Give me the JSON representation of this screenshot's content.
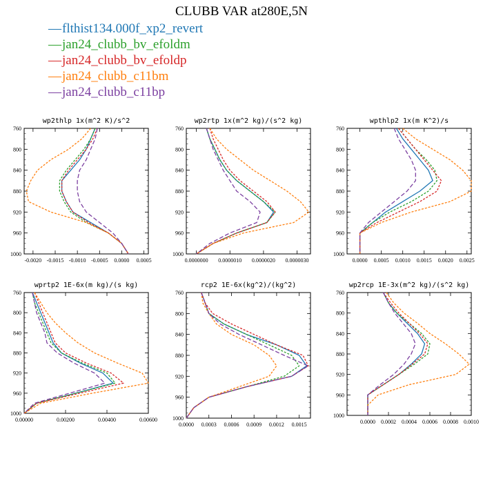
{
  "title": "CLUBB VAR at280E,5N",
  "legend": [
    {
      "label": "flthist134.000f_xp2_revert",
      "color": "#1f77b4"
    },
    {
      "label": "jan24_clubb_bv_efoldm",
      "color": "#2ca02c"
    },
    {
      "label": "jan24_clubb_bv_efoldp",
      "color": "#d62728"
    },
    {
      "label": "jan24_clubb_c11bm",
      "color": "#ff7f0e"
    },
    {
      "label": "jan24_clubb_c11bp",
      "color": "#7b3fa0"
    }
  ],
  "chart_data": [
    {
      "type": "line",
      "title": "wp2thlp  1x(m^2 K)/s^2",
      "xlim": [
        -0.0022,
        0.0006
      ],
      "ylim": [
        760,
        1000
      ],
      "xticks": [
        -0.002,
        -0.0015,
        -0.001,
        -0.0005,
        0.0,
        0.0005
      ],
      "xticklabels": [
        "-0.0020",
        "-0.0015",
        "-0.0010",
        "-0.0005",
        "0.0000",
        "0.0005"
      ],
      "yticks": [
        760,
        800,
        840,
        880,
        920,
        960,
        1000
      ],
      "y": [
        760,
        780,
        800,
        820,
        840,
        860,
        880,
        900,
        920,
        940,
        960,
        980,
        1000
      ],
      "series": [
        {
          "x": [
            -0.0006,
            -0.0007,
            -0.0008,
            -0.00095,
            -0.00115,
            -0.00135,
            -0.00135,
            -0.00125,
            -0.0011,
            -0.0007,
            -0.0003,
            0.0,
            0.00015
          ]
        },
        {
          "x": [
            -0.0006,
            -0.0007,
            -0.00085,
            -0.00105,
            -0.00125,
            -0.0014,
            -0.0014,
            -0.0013,
            -0.00115,
            -0.0008,
            -0.0003,
            0.0,
            0.00015
          ]
        },
        {
          "x": [
            -0.00055,
            -0.00065,
            -0.0008,
            -0.001,
            -0.0012,
            -0.00135,
            -0.00135,
            -0.00125,
            -0.0011,
            -0.00075,
            -0.0003,
            0.0,
            0.00015
          ]
        },
        {
          "x": [
            -0.0007,
            -0.0009,
            -0.0012,
            -0.0016,
            -0.0019,
            -0.00205,
            -0.00215,
            -0.0021,
            -0.0016,
            -0.0008,
            -0.0003,
            0.0,
            0.00015
          ]
        },
        {
          "x": [
            -0.00055,
            -0.0006,
            -0.0007,
            -0.0008,
            -0.00095,
            -0.001,
            -0.001,
            -0.00095,
            -0.0008,
            -0.0005,
            -0.0002,
            0.0,
            0.00015
          ]
        }
      ]
    },
    {
      "type": "line",
      "title": "wp2rtp  1x(m^2 kg)/(s^2 kg)",
      "xlim": [
        -3e-07,
        3.4e-06
      ],
      "ylim": [
        760,
        1000
      ],
      "xticks": [
        0.0,
        1e-06,
        2e-06,
        3e-06
      ],
      "xticklabels": [
        "0.0000000",
        "0.0000010",
        "0.0000020",
        "0.0000030"
      ],
      "yticks": [
        760,
        800,
        840,
        880,
        920,
        960,
        1000
      ],
      "y": [
        760,
        780,
        800,
        820,
        840,
        860,
        880,
        900,
        920,
        940,
        960,
        980,
        1000
      ],
      "series": [
        {
          "x": [
            3e-07,
            4e-07,
            5.5e-07,
            7e-07,
            9e-07,
            1.2e-06,
            1.6e-06,
            2e-06,
            2.3e-06,
            2.1e-06,
            1.2e-06,
            5e-07,
            0.0
          ]
        },
        {
          "x": [
            3e-07,
            4e-07,
            5.5e-07,
            7e-07,
            9e-07,
            1.2e-06,
            1.6e-06,
            2e-06,
            2.35e-06,
            2.1e-06,
            1.2e-06,
            5e-07,
            0.0
          ]
        },
        {
          "x": [
            4e-07,
            5e-07,
            6.5e-07,
            8e-07,
            1e-06,
            1.3e-06,
            1.7e-06,
            2.1e-06,
            2.35e-06,
            2.1e-06,
            1.2e-06,
            5e-07,
            0.0
          ]
        },
        {
          "x": [
            4e-07,
            6e-07,
            9e-07,
            1.3e-06,
            1.7e-06,
            2.2e-06,
            2.7e-06,
            3.1e-06,
            3.35e-06,
            2.9e-06,
            1.4e-06,
            5e-07,
            0.0
          ]
        },
        {
          "x": [
            3e-07,
            4e-07,
            5e-07,
            6.5e-07,
            8e-07,
            1e-06,
            1.2e-06,
            1.6e-06,
            1.9e-06,
            1.8e-06,
            1e-06,
            4e-07,
            0.0
          ]
        }
      ]
    },
    {
      "type": "line",
      "title": "wpthlp2  1x(m K^2)/s",
      "xlim": [
        -0.0003,
        0.0026
      ],
      "ylim": [
        760,
        1000
      ],
      "xticks": [
        0.0,
        0.0005,
        0.001,
        0.0015,
        0.002,
        0.0025
      ],
      "xticklabels": [
        "0.0000",
        "0.0005",
        "0.0010",
        "0.0015",
        "0.0020",
        "0.0025"
      ],
      "yticks": [
        760,
        800,
        840,
        880,
        920,
        960,
        1000
      ],
      "y": [
        760,
        780,
        800,
        820,
        840,
        860,
        880,
        900,
        920,
        940,
        960,
        980,
        1000
      ],
      "series": [
        {
          "x": [
            0.00085,
            0.001,
            0.0012,
            0.0014,
            0.0016,
            0.0017,
            0.0014,
            0.001,
            0.0006,
            0.0003,
            0.0,
            0.0,
            0.0
          ]
        },
        {
          "x": [
            0.0009,
            0.0011,
            0.0013,
            0.00155,
            0.00175,
            0.0018,
            0.0016,
            0.0012,
            0.0007,
            0.0003,
            0.0,
            0.0,
            0.0
          ]
        },
        {
          "x": [
            0.0009,
            0.0011,
            0.0013,
            0.0015,
            0.0017,
            0.0019,
            0.0018,
            0.0014,
            0.0009,
            0.0004,
            0.0,
            0.0,
            0.0
          ]
        },
        {
          "x": [
            0.001,
            0.0013,
            0.0017,
            0.0021,
            0.0024,
            0.0026,
            0.0026,
            0.0021,
            0.0012,
            0.0005,
            0.0,
            0.0,
            0.0
          ]
        },
        {
          "x": [
            0.0008,
            0.0009,
            0.00105,
            0.0012,
            0.0013,
            0.0013,
            0.0011,
            0.0008,
            0.0005,
            0.0002,
            0.0,
            0.0,
            0.0
          ]
        }
      ]
    },
    {
      "type": "line",
      "title": "wprtp2  1E-6x(m kg)/(s kg)",
      "xlim": [
        0.0,
        0.006
      ],
      "ylim": [
        760,
        1000
      ],
      "xticks": [
        0.0,
        0.002,
        0.004,
        0.006
      ],
      "xticklabels": [
        "0.00000",
        "0.00200",
        "0.00400",
        "0.00600"
      ],
      "yticks": [
        760,
        800,
        840,
        880,
        920,
        960,
        1000
      ],
      "y": [
        760,
        780,
        800,
        820,
        840,
        860,
        880,
        900,
        920,
        940,
        960,
        980,
        1000
      ],
      "series": [
        {
          "x": [
            0.0004,
            0.0006,
            0.0008,
            0.001,
            0.0012,
            0.0014,
            0.0018,
            0.0027,
            0.0038,
            0.0043,
            0.0025,
            0.0006,
            0.0
          ]
        },
        {
          "x": [
            0.0004,
            0.0005,
            0.0007,
            0.0009,
            0.0011,
            0.0013,
            0.0018,
            0.0028,
            0.004,
            0.0044,
            0.0025,
            0.0006,
            0.0
          ]
        },
        {
          "x": [
            0.0005,
            0.0007,
            0.0009,
            0.0011,
            0.0013,
            0.0015,
            0.002,
            0.003,
            0.0042,
            0.0048,
            0.0027,
            0.0006,
            0.0
          ]
        },
        {
          "x": [
            0.0005,
            0.0008,
            0.0011,
            0.0015,
            0.002,
            0.0026,
            0.0034,
            0.0045,
            0.0057,
            0.006,
            0.0033,
            0.0008,
            0.0
          ]
        },
        {
          "x": [
            0.0004,
            0.0005,
            0.0006,
            0.0008,
            0.001,
            0.0011,
            0.0016,
            0.0024,
            0.0034,
            0.0039,
            0.0022,
            0.0005,
            0.0
          ]
        }
      ]
    },
    {
      "type": "line",
      "title": "rcp2  1E-6x(kg^2)/(kg^2)",
      "xlim": [
        0.0,
        0.00165
      ],
      "ylim": [
        760,
        1000
      ],
      "xticks": [
        0.0,
        0.0003,
        0.0006,
        0.0009,
        0.0012,
        0.0015
      ],
      "xticklabels": [
        "0.0000",
        "0.0003",
        "0.0006",
        "0.0009",
        "0.0012",
        "0.0015"
      ],
      "yticks": [
        760,
        800,
        840,
        880,
        920,
        960,
        1000
      ],
      "y": [
        760,
        780,
        800,
        820,
        840,
        860,
        880,
        900,
        920,
        940,
        960,
        980,
        1000
      ],
      "series": [
        {
          "x": [
            0.0002,
            0.00025,
            0.0003,
            0.0005,
            0.0008,
            0.0012,
            0.0015,
            0.0016,
            0.0014,
            0.0008,
            0.0003,
            0.0001,
            0.0
          ]
        },
        {
          "x": [
            0.0002,
            0.00025,
            0.0003,
            0.0005,
            0.0008,
            0.0011,
            0.0014,
            0.0015,
            0.0013,
            0.0008,
            0.0003,
            0.0001,
            0.0
          ]
        },
        {
          "x": [
            0.0002,
            0.00025,
            0.00035,
            0.0006,
            0.0009,
            0.0012,
            0.00155,
            0.00162,
            0.0014,
            0.0008,
            0.0003,
            0.0001,
            0.0
          ]
        },
        {
          "x": [
            0.0002,
            0.00022,
            0.0003,
            0.0004,
            0.0006,
            0.0009,
            0.0011,
            0.0012,
            0.0011,
            0.0007,
            0.0003,
            0.0001,
            0.0
          ]
        },
        {
          "x": [
            0.0002,
            0.00025,
            0.0003,
            0.00045,
            0.0007,
            0.001,
            0.0013,
            0.00162,
            0.0014,
            0.0008,
            0.0003,
            0.0001,
            0.0
          ]
        }
      ]
    },
    {
      "type": "line",
      "title": "wp2rcp  1E-3x(m^2 kg)/(s^2 kg)",
      "xlim": [
        -0.0002,
        0.001
      ],
      "ylim": [
        760,
        1000
      ],
      "xticks": [
        0.0,
        0.0002,
        0.0004,
        0.0006,
        0.0008,
        0.001
      ],
      "xticklabels": [
        "0.0000",
        "0.0002",
        "0.0004",
        "0.0006",
        "0.0008",
        "0.0010"
      ],
      "yticks": [
        760,
        800,
        840,
        880,
        920,
        960,
        1000
      ],
      "y": [
        760,
        780,
        800,
        820,
        840,
        860,
        880,
        900,
        920,
        940,
        960,
        980,
        1000
      ],
      "series": [
        {
          "x": [
            0.00015,
            0.0002,
            0.00028,
            0.00038,
            0.00048,
            0.00055,
            0.00052,
            0.00042,
            0.0003,
            0.00015,
            0.0,
            0.0,
            0.0
          ]
        },
        {
          "x": [
            0.00015,
            0.0002,
            0.00028,
            0.0004,
            0.00052,
            0.0006,
            0.00058,
            0.00045,
            0.0003,
            0.00015,
            0.0,
            0.0,
            0.0
          ]
        },
        {
          "x": [
            0.00015,
            0.00022,
            0.0003,
            0.0004,
            0.0005,
            0.00058,
            0.00055,
            0.00043,
            0.0003,
            0.00015,
            0.0,
            0.0,
            0.0
          ]
        },
        {
          "x": [
            0.00018,
            0.00025,
            0.00035,
            0.00048,
            0.0006,
            0.00075,
            0.00088,
            0.00098,
            0.00085,
            0.0004,
            0.0001,
            0.0,
            0.0
          ]
        },
        {
          "x": [
            0.00015,
            0.0002,
            0.00026,
            0.00034,
            0.00042,
            0.00046,
            0.00042,
            0.00035,
            0.00025,
            0.00012,
            0.0,
            0.0,
            0.0
          ]
        }
      ]
    }
  ]
}
